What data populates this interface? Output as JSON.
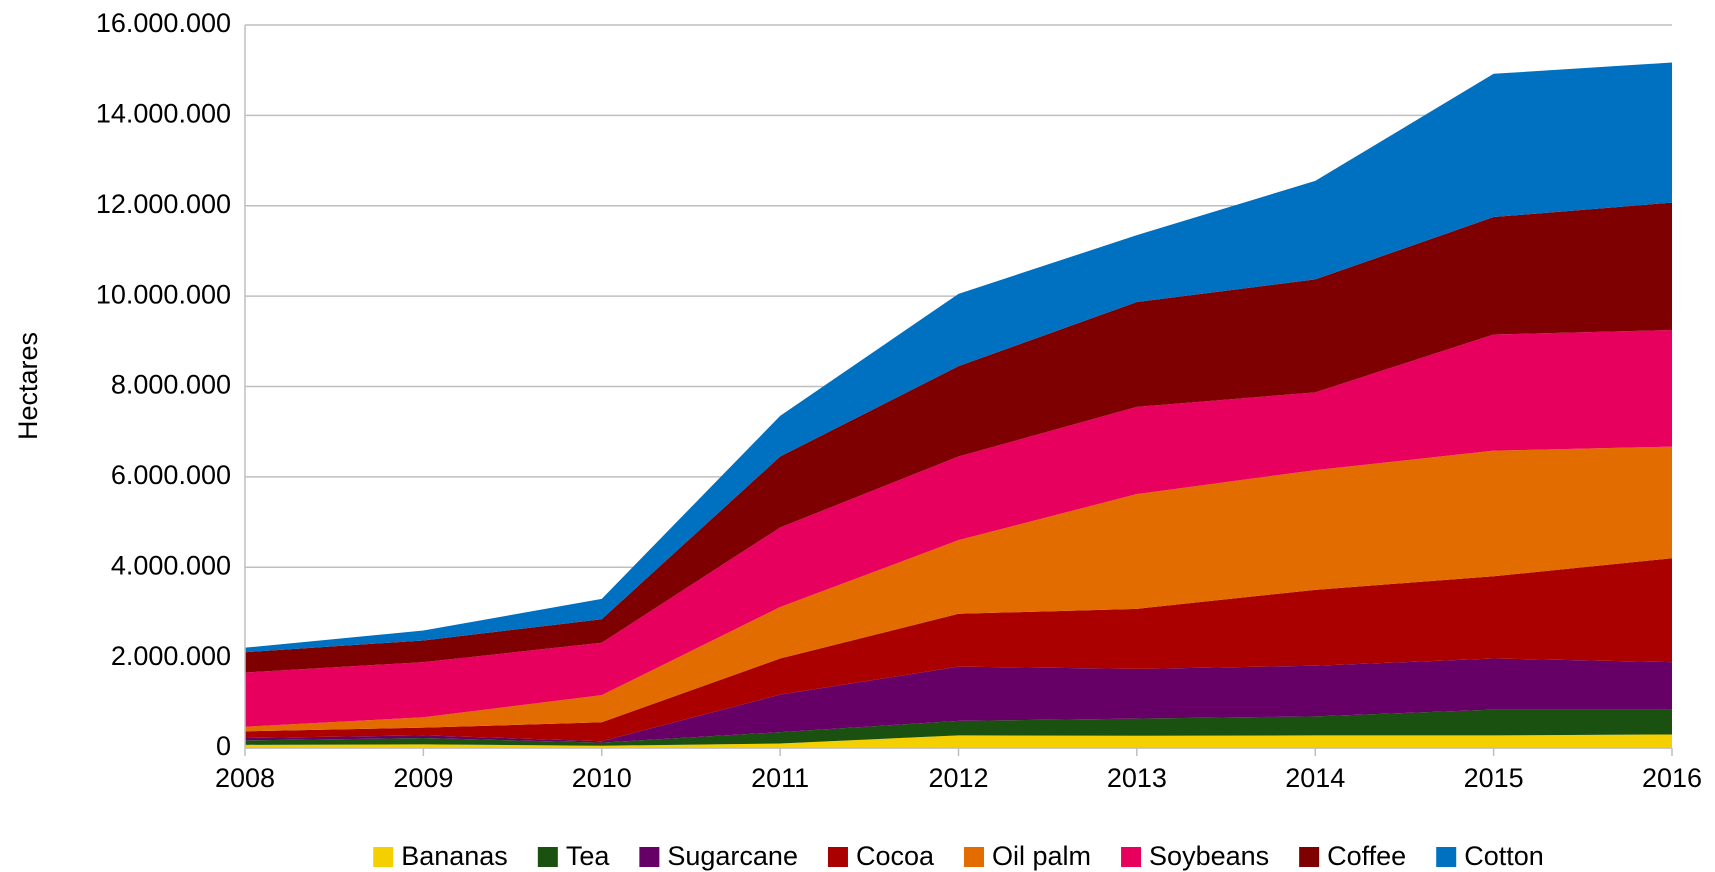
{
  "chart_data": {
    "type": "stacked_area",
    "y_label": "Hectares",
    "categories": [
      "2008",
      "2009",
      "2010",
      "2011",
      "2012",
      "2013",
      "2014",
      "2015",
      "2016"
    ],
    "series": [
      {
        "name": "Bananas",
        "color": "#f5d000",
        "values": [
          70000,
          80000,
          50000,
          100000,
          280000,
          270000,
          280000,
          280000,
          300000
        ]
      },
      {
        "name": "Tea",
        "color": "#1a5010",
        "values": [
          100000,
          140000,
          70000,
          250000,
          320000,
          380000,
          420000,
          570000,
          550000
        ]
      },
      {
        "name": "Sugarcane",
        "color": "#660066",
        "values": [
          50000,
          60000,
          30000,
          830000,
          1200000,
          1100000,
          1120000,
          1130000,
          1050000
        ]
      },
      {
        "name": "Cocoa",
        "color": "#aa0000",
        "values": [
          150000,
          170000,
          420000,
          800000,
          1170000,
          1330000,
          1680000,
          1820000,
          2300000
        ]
      },
      {
        "name": "Oil palm",
        "color": "#e36c00",
        "values": [
          100000,
          230000,
          600000,
          1140000,
          1630000,
          2540000,
          2650000,
          2780000,
          2470000
        ]
      },
      {
        "name": "Soybeans",
        "color": "#e8005e",
        "values": [
          1200000,
          1220000,
          1160000,
          1760000,
          1850000,
          1930000,
          1720000,
          2570000,
          2580000
        ]
      },
      {
        "name": "Coffee",
        "color": "#7f0000",
        "values": [
          450000,
          480000,
          520000,
          1570000,
          2000000,
          2320000,
          2500000,
          2600000,
          2820000
        ]
      },
      {
        "name": "Cotton",
        "color": "#0070c0",
        "values": [
          100000,
          220000,
          450000,
          900000,
          1600000,
          1480000,
          2180000,
          3170000,
          3100000
        ]
      }
    ],
    "ylim": [
      0,
      16000000
    ],
    "yticks": [
      0,
      {
        "value": 2000000,
        "label": "2.000.000"
      },
      {
        "value": 4000000,
        "label": "4.000.000"
      },
      {
        "value": 6000000,
        "label": "6.000.000"
      },
      {
        "value": 8000000,
        "label": "8.000.000"
      },
      {
        "value": 10000000,
        "label": "10.000.000"
      },
      {
        "value": 12000000,
        "label": "12.000.000"
      },
      {
        "value": 14000000,
        "label": "14.000.000"
      },
      {
        "value": 16000000,
        "label": "16.000.000"
      }
    ],
    "grid": true,
    "legend": "bottom"
  }
}
